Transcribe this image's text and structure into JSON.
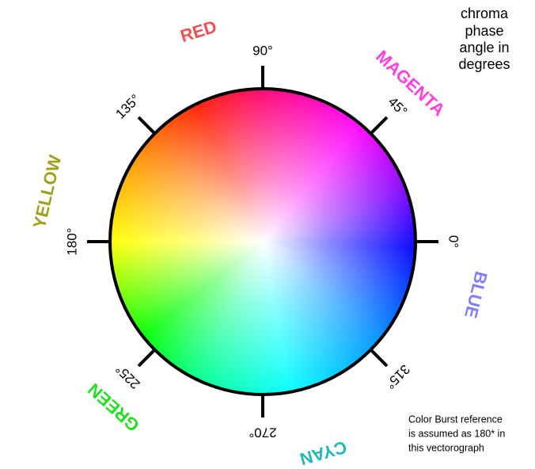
{
  "title_lines": [
    "chroma",
    "phase",
    "angle in",
    "degrees"
  ],
  "ticks": [
    {
      "value": 90,
      "label": "90°"
    },
    {
      "value": 45,
      "label": "45°"
    },
    {
      "value": 0,
      "label": "0°"
    },
    {
      "value": 315,
      "label": "315°"
    },
    {
      "value": 270,
      "label": "270°"
    },
    {
      "value": 225,
      "label": "225°"
    },
    {
      "value": 180,
      "label": "180°"
    },
    {
      "value": 135,
      "label": "135°"
    }
  ],
  "color_names": [
    "RED",
    "MAGENTA",
    "BLUE",
    "CYAN",
    "GREEN",
    "YELLOW"
  ],
  "note_lines": [
    "Color Burst reference",
    "is assumed as 180* in",
    "this vectorograph"
  ]
}
